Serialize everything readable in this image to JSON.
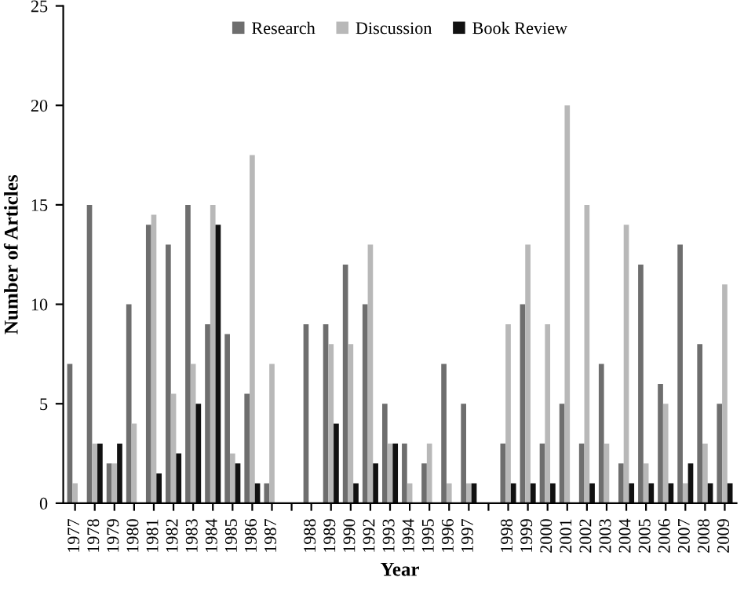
{
  "chart_data": {
    "type": "bar",
    "xlabel": "Year",
    "ylabel": "Number of Articles",
    "categories": [
      "1977",
      "1978",
      "1979",
      "1980",
      "1981",
      "1982",
      "1983",
      "1984",
      "1985",
      "1986",
      "1987",
      null,
      "1988",
      "1989",
      "1990",
      "1992",
      "1993",
      "1994",
      "1995",
      "1996",
      "1997",
      null,
      "1998",
      "1999",
      "2000",
      "2001",
      "2002",
      "2003",
      "2004",
      "2005",
      "2006",
      "2007",
      "2008",
      "2009"
    ],
    "series": [
      {
        "name": "Research",
        "color": "#6e6e6e",
        "values": [
          7,
          15,
          2,
          10,
          14,
          13,
          15,
          9,
          8.5,
          5.5,
          1,
          null,
          9,
          9,
          12,
          10,
          5,
          3,
          2,
          7,
          5,
          null,
          3,
          10,
          3,
          5,
          3,
          7,
          2,
          12,
          6,
          13,
          8,
          5
        ]
      },
      {
        "name": "Discussion",
        "color": "#b8b8b8",
        "values": [
          1,
          3,
          2,
          4,
          14.5,
          5.5,
          7,
          15,
          2.5,
          17.5,
          7,
          null,
          0,
          8,
          8,
          13,
          3,
          1,
          3,
          1,
          1,
          null,
          9,
          13,
          9,
          20,
          15,
          3,
          14,
          2,
          5,
          1,
          3,
          11
        ]
      },
      {
        "name": "Book Review",
        "color": "#111111",
        "values": [
          0,
          3,
          3,
          0,
          1.5,
          2.5,
          5,
          14,
          2,
          1,
          0,
          null,
          0,
          4,
          1,
          2,
          3,
          0,
          0,
          0,
          1,
          null,
          1,
          1,
          1,
          0,
          1,
          0,
          1,
          1,
          1,
          2,
          1,
          1
        ]
      }
    ],
    "ylim": [
      0,
      25
    ],
    "yticks": [
      0,
      5,
      10,
      15,
      20,
      25
    ],
    "grid": false,
    "legend": "top"
  }
}
